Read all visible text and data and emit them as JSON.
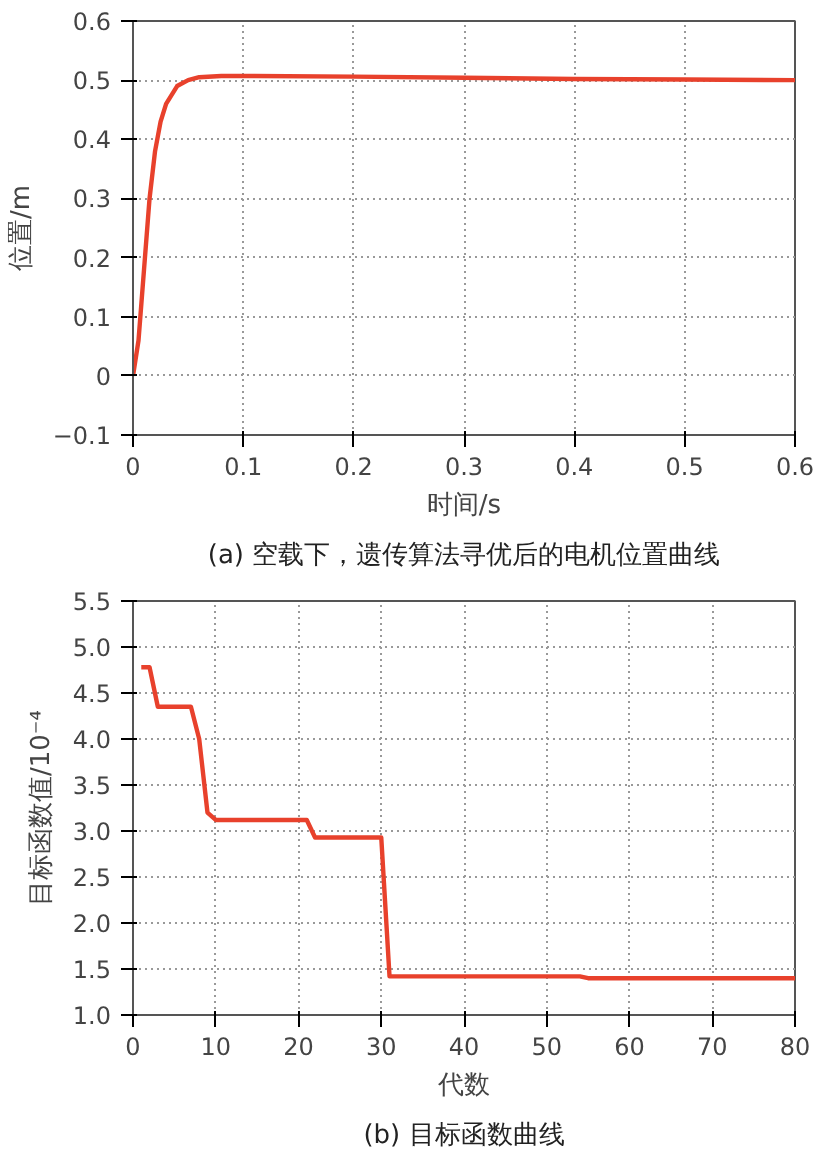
{
  "chart_data": [
    {
      "type": "line",
      "xlabel": "时间/s",
      "ylabel": "位置/m",
      "annotations": [
        "(a) 空载下，遗传算法寻优后的电机位置曲线"
      ],
      "grid": true,
      "xlim": [
        0,
        0.6
      ],
      "ylim": [
        -0.1,
        0.6
      ],
      "xticks": [
        0,
        0.1,
        0.2,
        0.3,
        0.4,
        0.5,
        0.6
      ],
      "yticks": [
        -0.1,
        0,
        0.1,
        0.2,
        0.3,
        0.4,
        0.5,
        0.6
      ],
      "series": [
        {
          "color": "#e8412c",
          "x": [
            0,
            0.005,
            0.01,
            0.015,
            0.02,
            0.025,
            0.03,
            0.04,
            0.05,
            0.06,
            0.08,
            0.1,
            0.2,
            0.3,
            0.4,
            0.5,
            0.6
          ],
          "values": [
            0,
            0.06,
            0.18,
            0.3,
            0.38,
            0.43,
            0.46,
            0.49,
            0.5,
            0.505,
            0.507,
            0.507,
            0.506,
            0.504,
            0.502,
            0.501,
            0.5
          ]
        }
      ]
    },
    {
      "type": "line",
      "xlabel": "代数",
      "ylabel": "目标函数值/10⁻⁴",
      "annotations": [
        "(b) 目标函数曲线"
      ],
      "grid": true,
      "xlim": [
        0,
        80
      ],
      "ylim": [
        1,
        5.5
      ],
      "xticks": [
        0,
        10,
        20,
        30,
        40,
        50,
        60,
        70,
        80
      ],
      "yticks": [
        {
          "value": 1,
          "label": "1.0"
        },
        1.5,
        {
          "value": 2,
          "label": "2.0"
        },
        2.5,
        {
          "value": 3,
          "label": "3.0"
        },
        3.5,
        {
          "value": 4,
          "label": "4.0"
        },
        4.5,
        {
          "value": 5,
          "label": "5.0"
        },
        5.5
      ],
      "series": [
        {
          "color": "#e8412c",
          "x": [
            1,
            2,
            3,
            7,
            8,
            8.5,
            9,
            10,
            21,
            22,
            30,
            31,
            54,
            55,
            80
          ],
          "values": [
            4.78,
            4.78,
            4.35,
            4.35,
            4.0,
            3.6,
            3.2,
            3.12,
            3.12,
            2.93,
            2.93,
            1.42,
            1.42,
            1.4,
            1.4
          ]
        }
      ]
    }
  ]
}
